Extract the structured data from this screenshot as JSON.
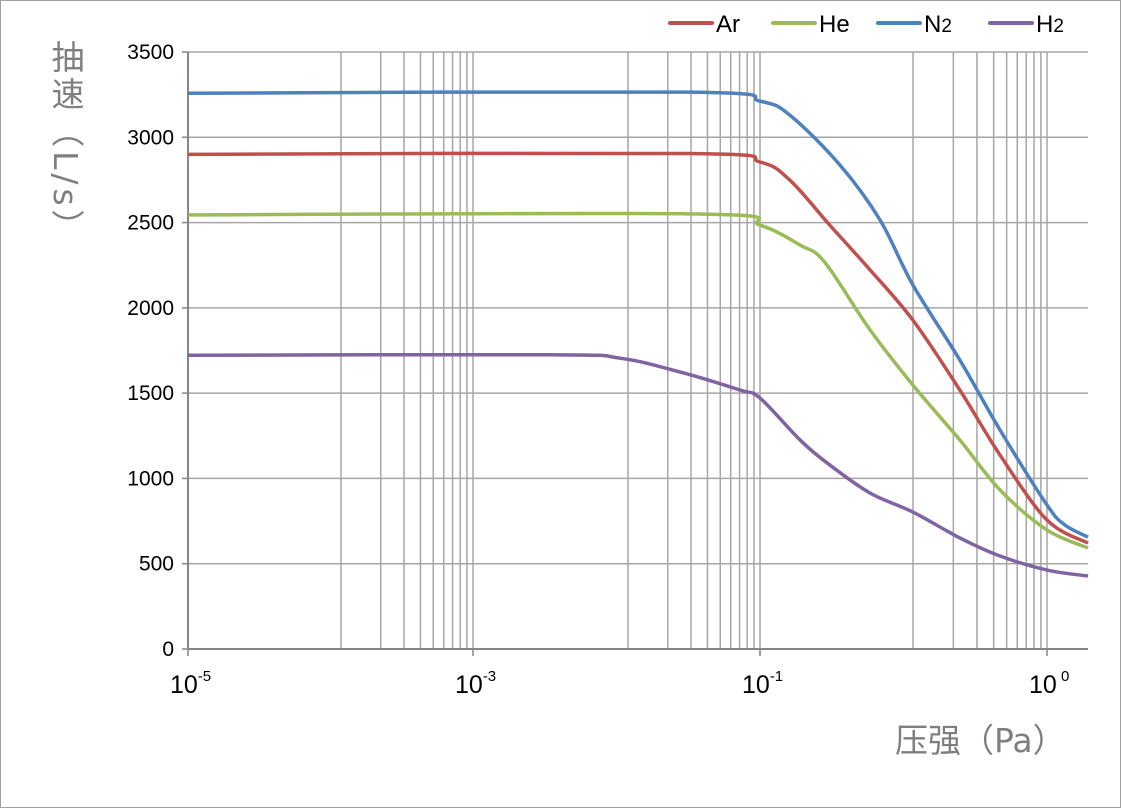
{
  "chart_data": {
    "type": "line",
    "title": "",
    "xlabel": "压强（Pa）",
    "ylabel": "抽速（L/s）",
    "x_scale": "log",
    "xlim": [
      1e-05,
      1.39
    ],
    "ylim": [
      0,
      3500
    ],
    "yticks": [
      0,
      500,
      1000,
      1500,
      2000,
      2500,
      3000,
      3500
    ],
    "xticks": [
      {
        "value": 1e-05,
        "base": "10",
        "exp": "-5"
      },
      {
        "value": 0.001,
        "base": "10",
        "exp": "-3"
      },
      {
        "value": 0.1,
        "base": "10",
        "exp": "-1"
      },
      {
        "value": 1,
        "base": "10",
        "exp": "0"
      }
    ],
    "grid": true,
    "legend_position": "top-right",
    "series": [
      {
        "name": "Ar",
        "label_main": "Ar",
        "label_sub": "",
        "color": "#c0504d",
        "x": [
          1e-05,
          0.0325,
          0.1,
          0.127,
          0.175,
          0.242,
          0.341,
          0.497,
          0.686,
          1.0,
          1.39
        ],
        "y": [
          2900,
          2905,
          2855,
          2749,
          2485,
          2222,
          1928,
          1518,
          1137,
          756,
          621
        ]
      },
      {
        "name": "He",
        "label_main": "He",
        "label_sub": "",
        "color": "#9bbb59",
        "x": [
          1e-05,
          0.0382,
          0.1,
          0.138,
          0.168,
          0.242,
          0.341,
          0.497,
          0.686,
          1.0,
          1.39
        ],
        "y": [
          2545,
          2550,
          2485,
          2368,
          2268,
          1870,
          1547,
          1225,
          932,
          698,
          592
        ]
      },
      {
        "name": "N2",
        "label_main": "N",
        "label_sub": "2",
        "color": "#4f81bd",
        "x": [
          1e-05,
          0.0325,
          0.1,
          0.127,
          0.19,
          0.262,
          0.341,
          0.497,
          0.686,
          1.0,
          1.155,
          1.39
        ],
        "y": [
          3258,
          3265,
          3212,
          3130,
          2837,
          2515,
          2134,
          1694,
          1284,
          844,
          727,
          656
        ]
      },
      {
        "name": "H2",
        "label_main": "H",
        "label_sub": "2",
        "color": "#8064a2",
        "x": [
          1e-05,
          0.00344,
          0.0106,
          0.0277,
          0.0726,
          0.1,
          0.138,
          0.175,
          0.242,
          0.341,
          0.497,
          0.686,
          1.0,
          1.39
        ],
        "y": [
          1722,
          1725,
          1705,
          1624,
          1518,
          1471,
          1225,
          1079,
          914,
          803,
          651,
          545,
          463,
          428
        ]
      }
    ]
  }
}
